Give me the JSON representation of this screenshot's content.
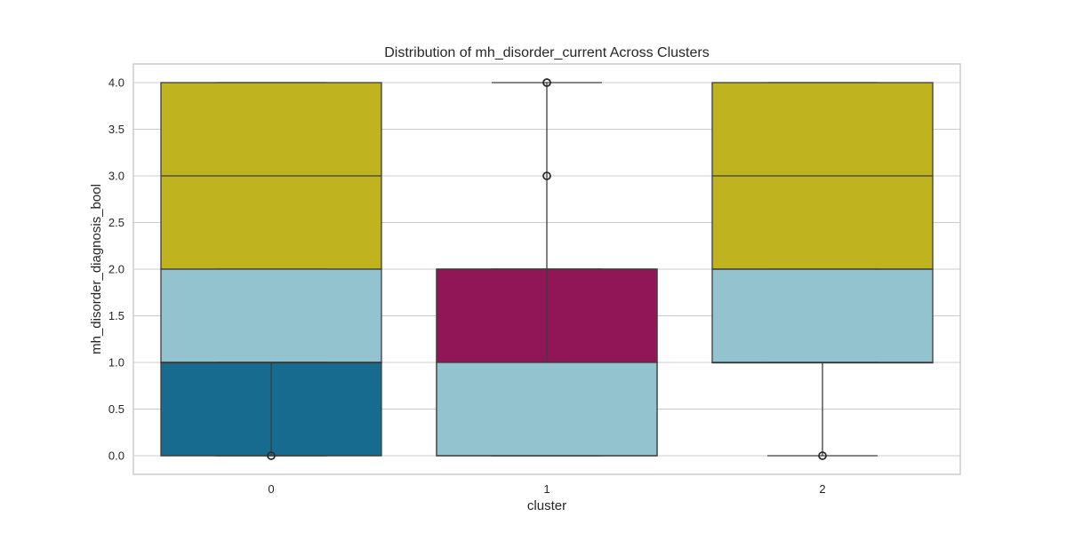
{
  "chart_data": {
    "type": "box",
    "title": "Distribution of mh_disorder_current Across Clusters",
    "xlabel": "cluster",
    "ylabel": "mh_disorder_diagnosis_bool",
    "categories": [
      "0",
      "1",
      "2"
    ],
    "ylim": [
      -0.2,
      4.2
    ],
    "yticks": [
      "0.0",
      "0.5",
      "1.0",
      "1.5",
      "2.0",
      "2.5",
      "3.0",
      "3.5",
      "4.0"
    ],
    "grid": true,
    "colors": {
      "yellow": "#bfb31f",
      "lightblue": "#92c3cf",
      "darkblue": "#176b8f",
      "magenta": "#901657",
      "grid": "#cccccc",
      "line": "#3d3d3d"
    },
    "layers": [
      {
        "color": "yellow",
        "boxes": [
          {
            "cluster": "0",
            "q1": 2,
            "median": 3,
            "q3": 4,
            "whisker_low": 2,
            "whisker_high": 4,
            "outliers": []
          },
          {
            "cluster": "1",
            "q1": 1,
            "median": 2,
            "q3": 2,
            "whisker_low": 1,
            "whisker_high": 2,
            "outliers": [
              3,
              4
            ]
          },
          {
            "cluster": "2",
            "q1": 2,
            "median": 3,
            "q3": 4,
            "whisker_low": 2,
            "whisker_high": 4,
            "outliers": []
          }
        ]
      },
      {
        "color": "lightblue",
        "boxes": [
          {
            "cluster": "0",
            "q1": 1,
            "median": 1,
            "q3": 2,
            "whisker_low": 1,
            "whisker_high": 2,
            "outliers": [
              0
            ]
          },
          {
            "cluster": "1",
            "q1": 0,
            "median": 1,
            "q3": 1,
            "whisker_low": 0,
            "whisker_high": 2,
            "outliers": [
              4
            ]
          },
          {
            "cluster": "2",
            "q1": 1,
            "median": 2,
            "q3": 2,
            "whisker_low": 1,
            "whisker_high": 2,
            "outliers": [
              0
            ]
          }
        ]
      },
      {
        "color": "darkblue",
        "boxes": [
          {
            "cluster": "0",
            "q1": 0,
            "median": 0,
            "q3": 1,
            "whisker_low": 0,
            "whisker_high": 1,
            "outliers": []
          }
        ]
      },
      {
        "color": "magenta",
        "boxes": [
          {
            "cluster": "1",
            "q1": 1,
            "median": 1,
            "q3": 2,
            "whisker_low": 1,
            "whisker_high": 2,
            "outliers": []
          }
        ]
      },
      {
        "color": "lightblue",
        "boxes": [
          {
            "cluster": "1",
            "q1": 0,
            "median": 0,
            "q3": 1,
            "whisker_low": 0,
            "whisker_high": 4,
            "outliers": [
              3,
              4
            ]
          }
        ]
      },
      {
        "color": "none",
        "boxes": [
          {
            "cluster": "0",
            "q1": 1,
            "median": 1,
            "q3": 1,
            "whisker_low": 0,
            "whisker_high": 1,
            "outliers": [
              0
            ]
          },
          {
            "cluster": "2",
            "q1": 1,
            "median": 1,
            "q3": 1,
            "whisker_low": 0,
            "whisker_high": 1,
            "outliers": [
              0
            ]
          }
        ]
      }
    ]
  }
}
